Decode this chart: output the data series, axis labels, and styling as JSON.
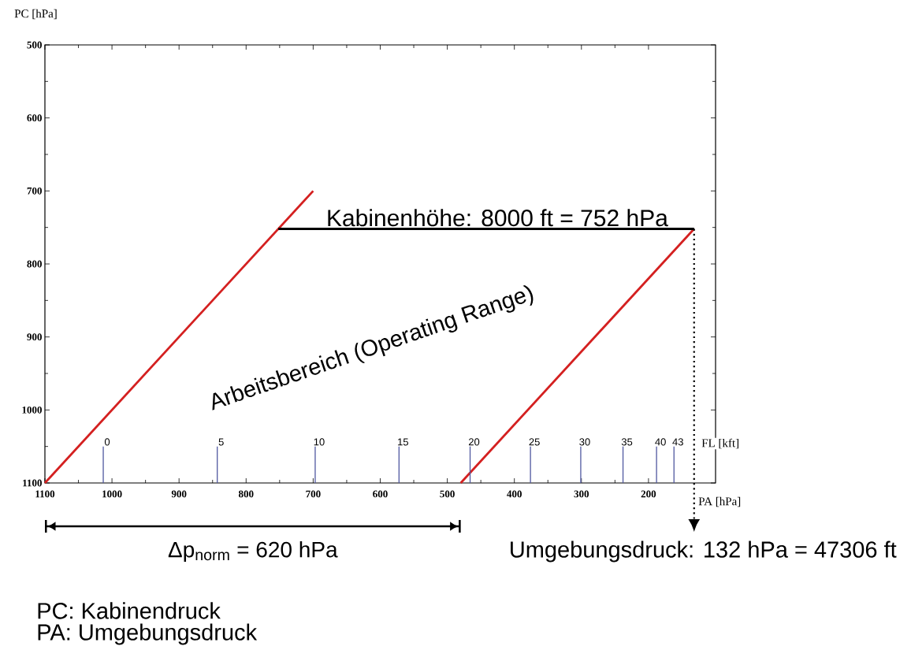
{
  "chart_data": {
    "type": "line",
    "xlabel": "PA [hPa]",
    "ylabel": "PC [hPa]",
    "xlim": [
      1100,
      100
    ],
    "ylim": [
      1100,
      500
    ],
    "xticks": [
      1100,
      1000,
      900,
      800,
      700,
      600,
      500,
      400,
      300,
      200
    ],
    "yticks": [
      500,
      600,
      700,
      800,
      900,
      1000,
      1100
    ],
    "series": [
      {
        "color": "#d42020",
        "x": [
          1100,
          700
        ],
        "values": [
          1100,
          700
        ]
      },
      {
        "color": "#d42020",
        "x": [
          480,
          132
        ],
        "values": [
          1100,
          752
        ]
      },
      {
        "color": "#000000",
        "x": [
          752,
          132
        ],
        "values": [
          752,
          752
        ]
      },
      {
        "color": "#000000",
        "x": [
          132,
          132
        ],
        "values": [
          752,
          1100
        ],
        "line_style": "dotted"
      },
      {
        "color": "#5058a0",
        "x": [
          1013,
          1013
        ],
        "values": [
          1100,
          1050
        ]
      },
      {
        "color": "#5058a0",
        "x": [
          843,
          843
        ],
        "values": [
          1100,
          1050
        ]
      },
      {
        "color": "#5058a0",
        "x": [
          697,
          697
        ],
        "values": [
          1100,
          1050
        ]
      },
      {
        "color": "#5058a0",
        "x": [
          572,
          572
        ],
        "values": [
          1100,
          1050
        ]
      },
      {
        "color": "#5058a0",
        "x": [
          466,
          466
        ],
        "values": [
          1100,
          1050
        ]
      },
      {
        "color": "#5058a0",
        "x": [
          376,
          376
        ],
        "values": [
          1100,
          1050
        ]
      },
      {
        "color": "#5058a0",
        "x": [
          301,
          301
        ],
        "values": [
          1100,
          1050
        ]
      },
      {
        "color": "#5058a0",
        "x": [
          238,
          238
        ],
        "values": [
          1100,
          1050
        ]
      },
      {
        "color": "#5058a0",
        "x": [
          188,
          188
        ],
        "values": [
          1100,
          1050
        ]
      },
      {
        "color": "#5058a0",
        "x": [
          162,
          162
        ],
        "values": [
          1100,
          1050
        ]
      }
    ],
    "annotations": [
      {
        "text": "Kabinenhöhe: 8000 ft = 752 hPa",
        "x": 442,
        "y": 752
      },
      "Arbeitsbereich (Operating Range)",
      "Δp$_{norm}$ = 620 hPa",
      "Umgebungsdruck: 132 hPa = 47306 ft",
      "PC: Kabinendruck",
      "PA: Umgebungsdruck",
      "FL [kft]",
      {
        "text": "0",
        "x": 1013,
        "y": 1050
      },
      {
        "text": "5",
        "x": 843,
        "y": 1050
      },
      {
        "text": "10",
        "x": 697,
        "y": 1050
      },
      {
        "text": "15",
        "x": 572,
        "y": 1050
      },
      {
        "text": "20",
        "x": 466,
        "y": 1050
      },
      {
        "text": "25",
        "x": 376,
        "y": 1050
      },
      {
        "text": "30",
        "x": 301,
        "y": 1050
      },
      {
        "text": "35",
        "x": 238,
        "y": 1050
      },
      {
        "text": "40",
        "x": 188,
        "y": 1050
      },
      {
        "text": "43",
        "x": 162,
        "y": 1050
      }
    ]
  }
}
